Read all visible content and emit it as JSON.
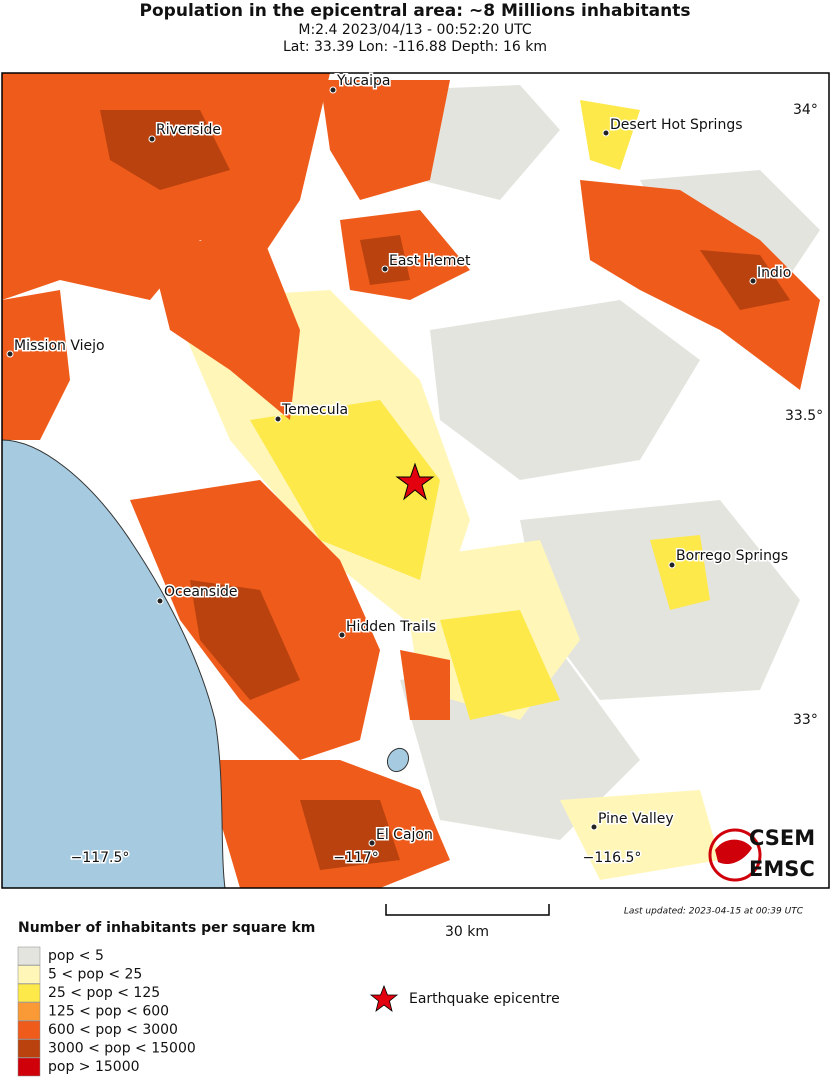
{
  "header": {
    "title": "Population in the epicentral area: ~8 Millions inhabitants",
    "subtitle": "M:2.4 2023/04/13 - 00:52:20 UTC",
    "location": "Lat: 33.39 Lon: -116.88 Depth: 16 km"
  },
  "map": {
    "cities": [
      "Yucaipa",
      "Riverside",
      "Desert Hot Springs",
      "East Hemet",
      "Indio",
      "Mission Viejo",
      "Temecula",
      "Borrego Springs",
      "Oceanside",
      "Hidden Trails",
      "El Cajon",
      "Pine Valley"
    ],
    "latitude_labels": [
      "34°",
      "33.5°",
      "33°"
    ],
    "longitude_labels": [
      "−117.5°",
      "−117°",
      "−116.5°"
    ],
    "scale_bar": "30 km",
    "last_updated": "Last updated: 2023-04-15 at 00:39 UTC",
    "logo": [
      "CSEM",
      "EMSC"
    ]
  },
  "legend": {
    "title": "Number of inhabitants per square km",
    "items": [
      {
        "label": "pop < 5",
        "color": "#e4e4df"
      },
      {
        "label": "5 < pop < 25",
        "color": "#fff6b8"
      },
      {
        "label": "25 < pop < 125",
        "color": "#fde94a"
      },
      {
        "label": "125 < pop < 600",
        "color": "#f99a36"
      },
      {
        "label": "600 < pop < 3000",
        "color": "#ef5b1a"
      },
      {
        "label": "3000 < pop < 15000",
        "color": "#b9420f"
      },
      {
        "label": "pop > 15000",
        "color": "#d0000b"
      }
    ],
    "epicentre": "Earthquake epicentre"
  }
}
